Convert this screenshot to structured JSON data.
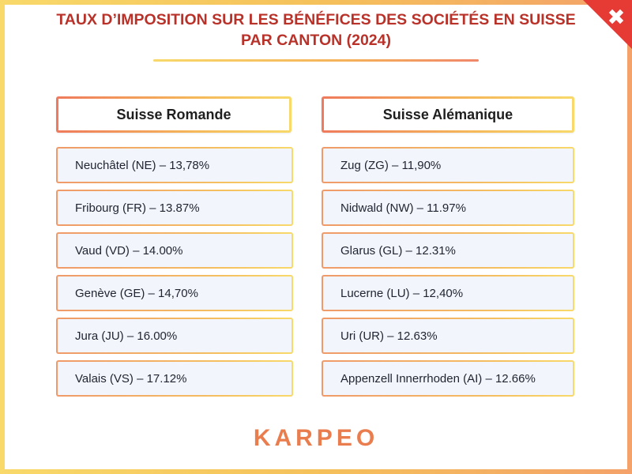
{
  "title": {
    "line1": "TAUX D’IMPOSITION SUR LES BÉNÉFICES DES SOCIÉTÉS EN SUISSE",
    "line2": "PAR CANTON (2024)"
  },
  "colors": {
    "title": "#b9322a",
    "accent_orange": "#ea7d4e",
    "accent_yellow": "#f8d96a",
    "flag_red": "#e63b35",
    "row_fill": "#f2f5fb"
  },
  "corner_icon": "swiss-flag-icon",
  "romande": {
    "header": "Suisse Romande",
    "rows": [
      "Neuchâtel (NE) – 13,78%",
      "Fribourg (FR) – 13.87%",
      "Vaud (VD) – 14.00%",
      "Genève (GE) – 14,70%",
      "Jura (JU) – 16.00%",
      "Valais (VS) – 17.12%"
    ]
  },
  "alemanique": {
    "header": "Suisse Alémanique",
    "rows": [
      "Zug (ZG) – 11,90%",
      "Nidwald (NW) – 11.97%",
      "Glarus (GL) – 12.31%",
      "Lucerne (LU) – 12,40%",
      "Uri (UR) – 12.63%",
      "Appenzell Innerrhoden (AI) – 12.66%"
    ]
  },
  "logo": "KARPEO"
}
